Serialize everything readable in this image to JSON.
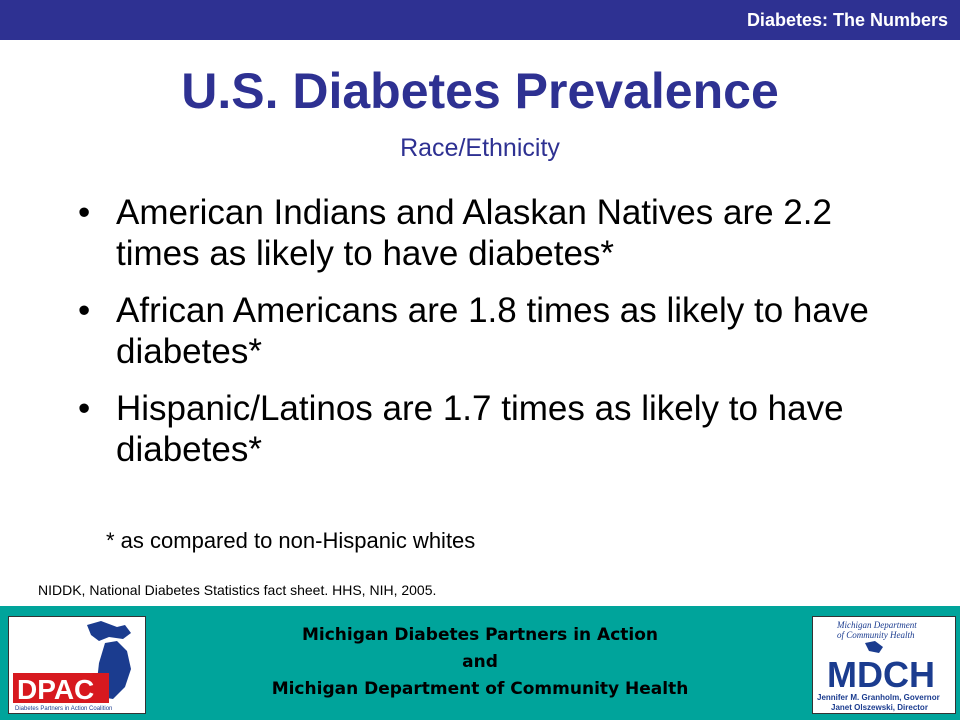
{
  "header": {
    "section_title": "Diabetes: The Numbers"
  },
  "slide": {
    "title": "U.S. Diabetes Prevalence",
    "subtitle": "Race/Ethnicity",
    "bullets": [
      "American Indians and Alaskan Natives are 2.2 times as likely to have diabetes*",
      "African Americans are 1.8 times as likely to have diabetes*",
      "Hispanic/Latinos are 1.7 times as likely to have diabetes*"
    ],
    "footnote": "* as compared to non-Hispanic whites",
    "source": "NIDDK, National Diabetes Statistics fact sheet. HHS, NIH, 2005."
  },
  "footer": {
    "line1": "Michigan Diabetes Partners in Action",
    "line2": "and",
    "line3": "Michigan Department of Community Health",
    "left_logo": {
      "text": "DPAC",
      "tagline": "Diabetes Partners in Action Coalition"
    },
    "right_logo": {
      "header_line1": "Michigan Department",
      "header_line2": "of Community Health",
      "text": "MDCH",
      "caption_line1": "Jennifer M. Granholm, Governor",
      "caption_line2": "Janet Olszewski, Director"
    }
  },
  "colors": {
    "title_blue": "#2e3192",
    "footer_teal": "#00a49b",
    "logo_red": "#d7191f",
    "logo_blue": "#1b3c8f"
  }
}
